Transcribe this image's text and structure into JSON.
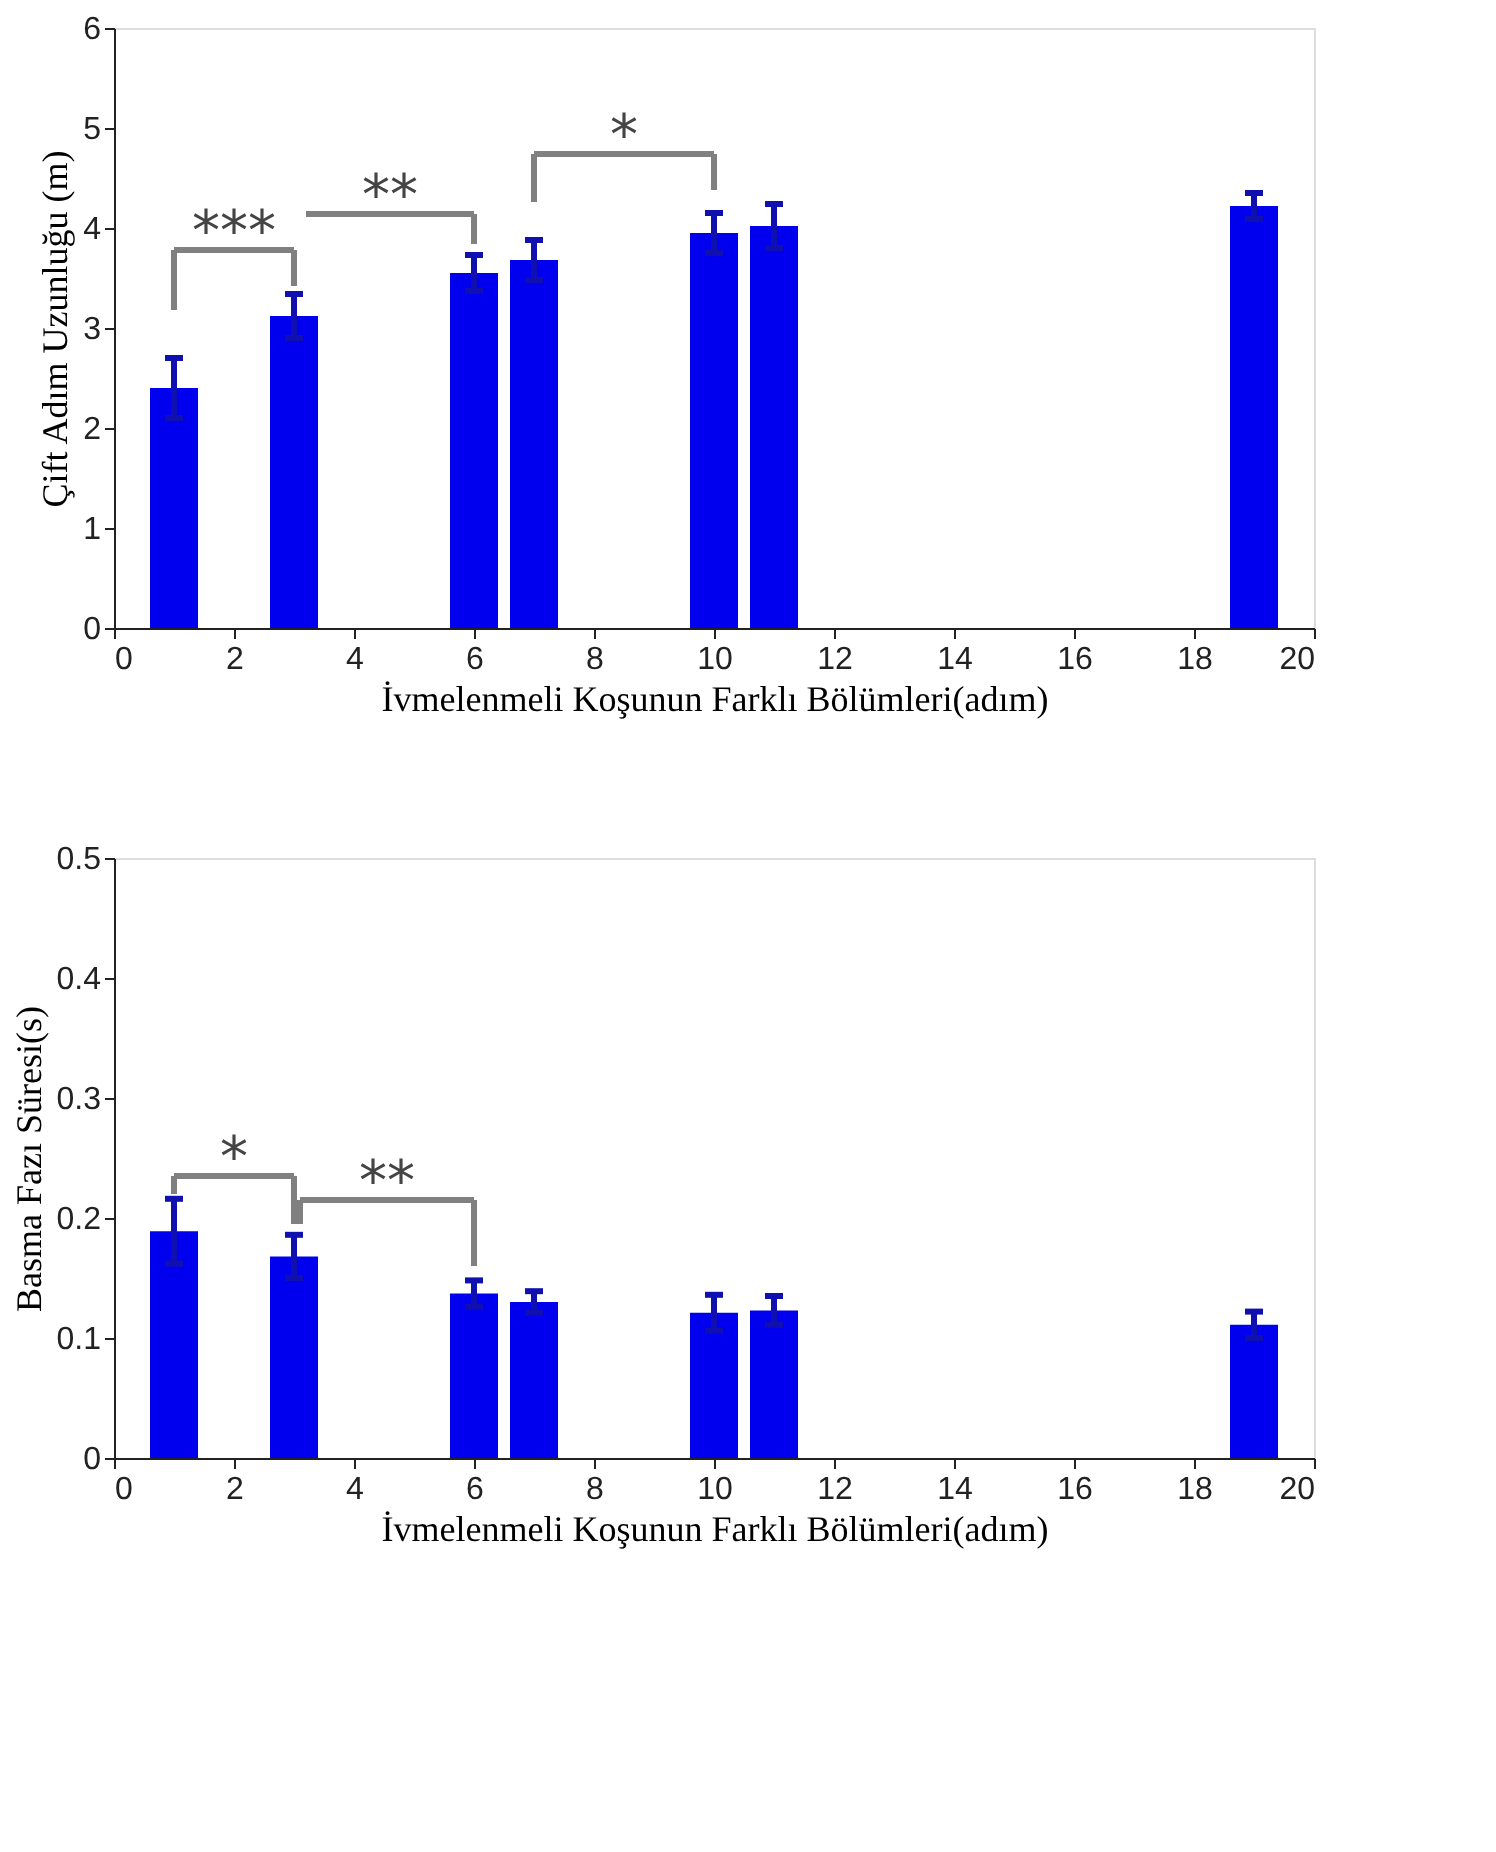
{
  "chart_data": [
    {
      "type": "bar",
      "x": [
        1,
        3,
        6,
        7,
        10,
        11,
        19
      ],
      "values": [
        2.4,
        3.12,
        3.55,
        3.68,
        3.95,
        4.02,
        4.22
      ],
      "errors": [
        0.3,
        0.22,
        0.18,
        0.2,
        0.2,
        0.22,
        0.13
      ],
      "color": "#0000ee",
      "xlabel": "İvmelenmeli Koşunun Farklı Bölümleri(adım)",
      "ylabel": "Çift Adım Uzunluğu (m)",
      "xlim": [
        0,
        20
      ],
      "xticks": [
        0,
        2,
        4,
        6,
        8,
        10,
        12,
        14,
        16,
        18,
        20
      ],
      "ylim": [
        0,
        6
      ],
      "yticks": [
        0,
        1,
        2,
        3,
        4,
        5,
        6
      ],
      "annotations": [
        "***",
        "**",
        "*"
      ]
    },
    {
      "type": "bar",
      "x": [
        1,
        3,
        6,
        7,
        10,
        11,
        19
      ],
      "values": [
        0.189,
        0.168,
        0.137,
        0.13,
        0.121,
        0.123,
        0.111
      ],
      "errors": [
        0.027,
        0.018,
        0.011,
        0.009,
        0.015,
        0.012,
        0.011
      ],
      "color": "#0000ee",
      "xlabel": "İvmelenmeli Koşunun Farklı Bölümleri(adım)",
      "ylabel": "Basma Fazı Süresi(s)",
      "xlim": [
        0,
        20
      ],
      "xticks": [
        0,
        2,
        4,
        6,
        8,
        10,
        12,
        14,
        16,
        18,
        20
      ],
      "ylim": [
        0,
        0.5
      ],
      "yticks": [
        0,
        0.1,
        0.2,
        0.3,
        0.4,
        0.5
      ],
      "annotations": [
        "*",
        "**"
      ]
    }
  ]
}
